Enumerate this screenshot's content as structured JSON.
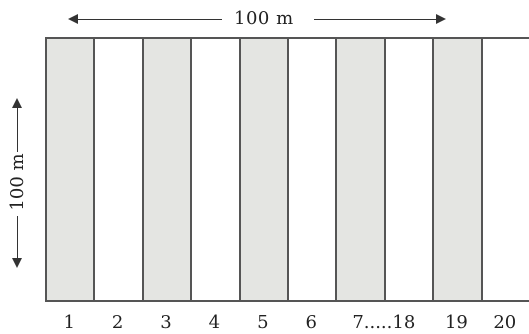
{
  "diagram": {
    "width_label": "100 m",
    "height_label": "100 m",
    "strips": [
      {
        "label": "1",
        "shade": "shaded"
      },
      {
        "label": "2",
        "shade": "plain"
      },
      {
        "label": "3",
        "shade": "shaded"
      },
      {
        "label": "4",
        "shade": "plain"
      },
      {
        "label": "5",
        "shade": "shaded"
      },
      {
        "label": "6",
        "shade": "plain"
      },
      {
        "label": "7.....18",
        "shade": "shaded"
      },
      {
        "label": "",
        "shade": "plain"
      },
      {
        "label": "19",
        "shade": "shaded"
      },
      {
        "label": "20",
        "shade": "plain"
      }
    ],
    "colors": {
      "shaded": "#e4e5e2",
      "plain": "#ffffff",
      "border": "#555555"
    }
  }
}
